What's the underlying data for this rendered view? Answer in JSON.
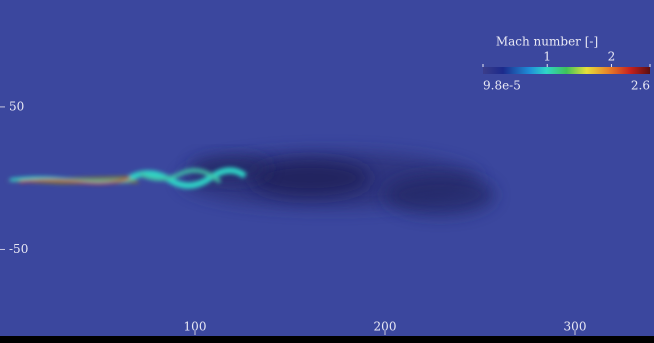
{
  "chart_data": {
    "type": "field",
    "colorbar_label": "Mach number [-]",
    "clim": [
      9.8e-05,
      2.6
    ],
    "cticks": [
      {
        "value": 9.8e-05,
        "label": "9.8e-5"
      },
      1,
      2,
      2.6
    ],
    "xlim": [
      0,
      340
    ],
    "xticks": [
      100,
      200,
      300
    ],
    "ylim": [
      -110,
      125
    ],
    "yticks": [
      -50,
      50
    ]
  }
}
